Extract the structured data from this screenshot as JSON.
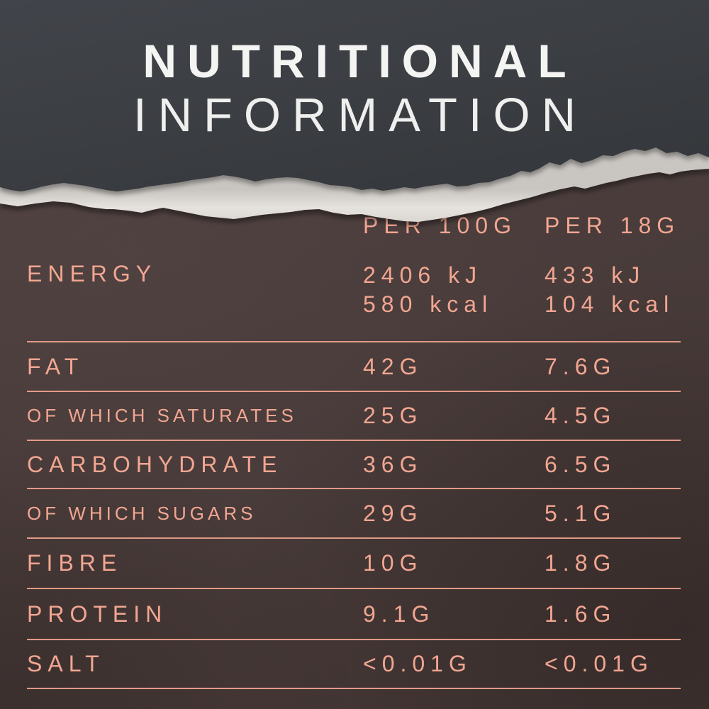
{
  "title": {
    "line1": "NUTRITIONAL",
    "line2": "INFORMATION"
  },
  "table": {
    "column_headers": [
      "PER 100G",
      "PER 18G"
    ],
    "rows": [
      {
        "label": "ENERGY",
        "per_100g": "2406 kJ",
        "per_100g_line2": "580 kcal",
        "per_18g": "433 kJ",
        "per_18g_line2": "104 kcal"
      },
      {
        "label": "FAT",
        "per_100g": "42G",
        "per_18g": "7.6G"
      },
      {
        "label": "OF WHICH SATURATES",
        "per_100g": "25G",
        "per_18g": "4.5G"
      },
      {
        "label": "CARBOHYDRATE",
        "per_100g": "36G",
        "per_18g": "6.5G"
      },
      {
        "label": "OF WHICH SUGARS",
        "per_100g": "29G",
        "per_18g": "5.1G"
      },
      {
        "label": "FIBRE",
        "per_100g": "10G",
        "per_18g": "1.8G"
      },
      {
        "label": "PROTEIN",
        "per_100g": "9.1G",
        "per_18g": "1.6G"
      },
      {
        "label": "SALT",
        "per_100g": "<0.01G",
        "per_18g": "<0.01G"
      }
    ]
  },
  "colors": {
    "accent_salmon": "#f2a691",
    "paper_gray": "#3b3e42",
    "background_brown": "#483b3a",
    "torn_edge_white": "#e3e0dc"
  },
  "decor": {
    "nib_colors": [
      "#5a331b",
      "#6f3e1d",
      "#8a4c20",
      "#a35b25",
      "#42291a",
      "#7a4422",
      "#33200f",
      "#b26a2e",
      "#502e18"
    ]
  }
}
